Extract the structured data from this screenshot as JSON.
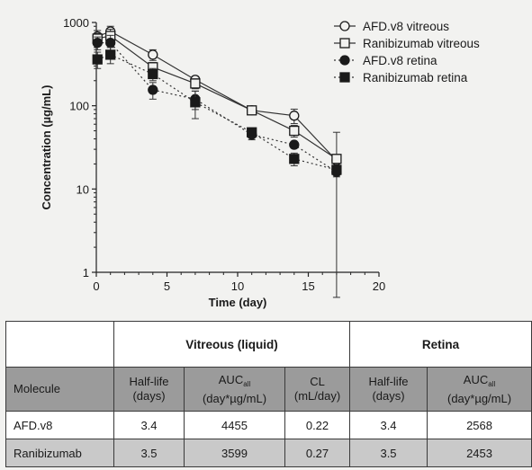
{
  "chart_data": {
    "type": "scatter",
    "title": "",
    "xlabel": "Time (day)",
    "ylabel": "Concentration (µg/mL)",
    "xlim": [
      0,
      20
    ],
    "ylim": [
      1,
      1000
    ],
    "yscale": "log",
    "x_ticks": [
      0,
      5,
      10,
      15,
      20
    ],
    "y_ticks": [
      1,
      10,
      100,
      1000
    ],
    "grid": false,
    "legend_position": "top-right",
    "series": [
      {
        "name": "AFD.v8 vitreous",
        "marker": "circle-open",
        "line": "solid",
        "color": "#333333",
        "x": [
          0.08,
          1,
          4,
          7,
          11,
          14,
          17
        ],
        "y": [
          680,
          780,
          410,
          205,
          88,
          76,
          22
        ],
        "err": [
          120,
          120,
          60,
          20,
          6,
          15,
          4
        ]
      },
      {
        "name": "Ranibizumab vitreous",
        "marker": "square-open",
        "line": "solid",
        "color": "#333333",
        "x": [
          0.08,
          1,
          4,
          7,
          11,
          14,
          17
        ],
        "y": [
          640,
          690,
          290,
          185,
          88,
          50,
          23
        ],
        "err": [
          100,
          140,
          40,
          25,
          6,
          8,
          25
        ]
      },
      {
        "name": "AFD.v8 retina",
        "marker": "circle-filled",
        "line": "dotted",
        "color": "#333333",
        "x": [
          0.08,
          1,
          4,
          7,
          11,
          14,
          17
        ],
        "y": [
          570,
          570,
          155,
          120,
          45,
          34,
          16
        ],
        "err": [
          100,
          130,
          35,
          30,
          6,
          3,
          2
        ]
      },
      {
        "name": "Ranibizumab retina",
        "marker": "square-filled",
        "line": "dotted",
        "color": "#333333",
        "x": [
          0.08,
          1,
          4,
          7,
          11,
          14,
          17
        ],
        "y": [
          360,
          410,
          240,
          110,
          48,
          23,
          17
        ],
        "err": [
          80,
          90,
          40,
          40,
          6,
          4,
          2
        ]
      }
    ]
  },
  "table": {
    "group_headers": [
      "",
      "Vitreous (liquid)",
      "Retina"
    ],
    "columns": [
      {
        "main": "Molecule"
      },
      {
        "main": "Half-life",
        "sub": "(days)"
      },
      {
        "main": "AUC",
        "subscript": "all",
        "sub": "(day*µg/mL)"
      },
      {
        "main": "CL",
        "sub": "(mL/day)"
      },
      {
        "main": "Half-life",
        "sub": "(days)"
      },
      {
        "main": "AUC",
        "subscript": "all",
        "sub": "(day*µg/mL)"
      }
    ],
    "rows": [
      [
        "AFD.v8",
        "3.4",
        "4455",
        "0.22",
        "3.4",
        "2568"
      ],
      [
        "Ranibizumab",
        "3.5",
        "3599",
        "0.27",
        "3.5",
        "2453"
      ]
    ]
  }
}
